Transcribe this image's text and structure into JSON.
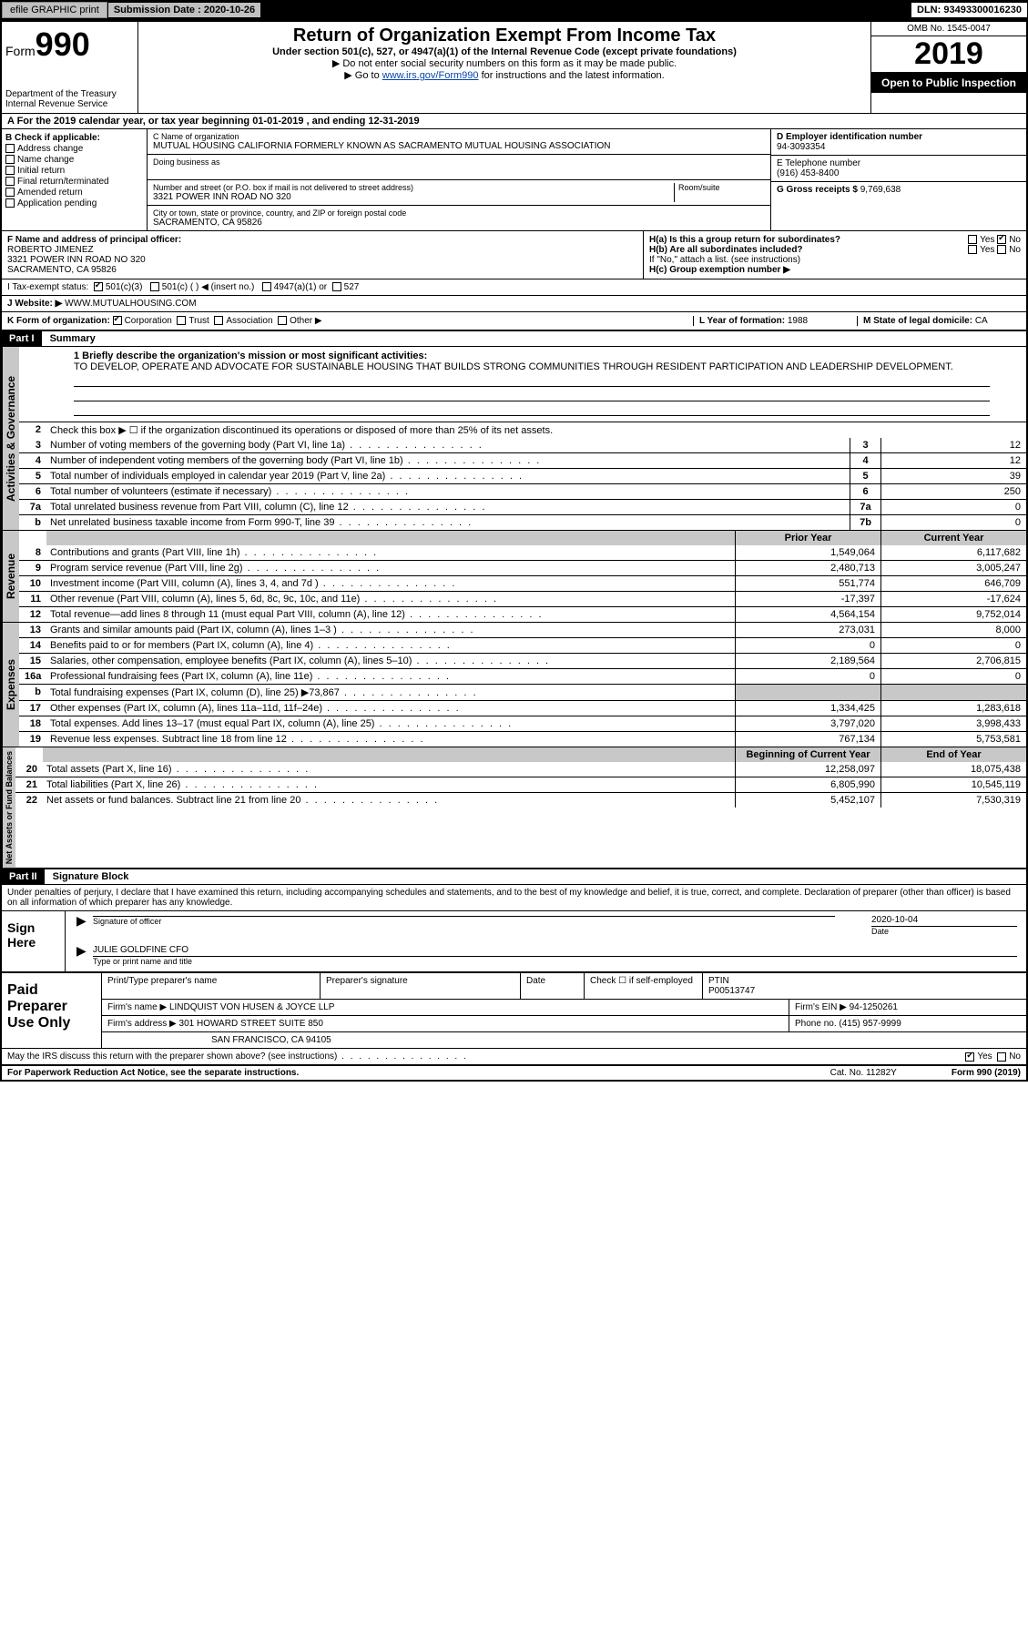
{
  "top": {
    "efile": "efile GRAPHIC print",
    "sub_label": "Submission Date : 2020-10-26",
    "dln": "DLN: 93493300016230"
  },
  "header": {
    "form": "Form",
    "num": "990",
    "dept": "Department of the Treasury\nInternal Revenue Service",
    "title": "Return of Organization Exempt From Income Tax",
    "sub": "Under section 501(c), 527, or 4947(a)(1) of the Internal Revenue Code (except private foundations)",
    "note1": "▶ Do not enter social security numbers on this form as it may be made public.",
    "note2_pre": "▶ Go to ",
    "note2_link": "www.irs.gov/Form990",
    "note2_post": " for instructions and the latest information.",
    "omb": "OMB No. 1545-0047",
    "year": "2019",
    "open": "Open to Public Inspection"
  },
  "rowA": "A For the 2019 calendar year, or tax year beginning 01-01-2019   , and ending 12-31-2019",
  "B": {
    "title": "B Check if applicable:",
    "items": [
      "Address change",
      "Name change",
      "Initial return",
      "Final return/terminated",
      "Amended return",
      "Application pending"
    ]
  },
  "C": {
    "name_label": "C Name of organization",
    "name": "MUTUAL HOUSING CALIFORNIA FORMERLY KNOWN AS SACRAMENTO MUTUAL HOUSING ASSOCIATION",
    "dba_label": "Doing business as",
    "addr_label": "Number and street (or P.O. box if mail is not delivered to street address)",
    "room_label": "Room/suite",
    "addr": "3321 POWER INN ROAD NO 320",
    "city_label": "City or town, state or province, country, and ZIP or foreign postal code",
    "city": "SACRAMENTO, CA  95826"
  },
  "D": {
    "label": "D Employer identification number",
    "val": "94-3093354"
  },
  "E": {
    "label": "E Telephone number",
    "val": "(916) 453-8400"
  },
  "G": {
    "label": "G Gross receipts $",
    "val": "9,769,638"
  },
  "F": {
    "label": "F  Name and address of principal officer:",
    "name": "ROBERTO JIMENEZ",
    "addr": "3321 POWER INN ROAD NO 320\nSACRAMENTO, CA  95826"
  },
  "H": {
    "a": "H(a)  Is this a group return for subordinates?",
    "a_yes": "Yes",
    "a_no": "No",
    "b": "H(b)  Are all subordinates included?",
    "b_yes": "Yes",
    "b_no": "No",
    "b_note": "If \"No,\" attach a list. (see instructions)",
    "c": "H(c)  Group exemption number ▶"
  },
  "I": {
    "label": "I   Tax-exempt status:",
    "opts": [
      "501(c)(3)",
      "501(c) (  ) ◀ (insert no.)",
      "4947(a)(1) or",
      "527"
    ]
  },
  "J": {
    "label": "J   Website: ▶",
    "val": "WWW.MUTUALHOUSING.COM"
  },
  "K": {
    "label": "K Form of organization:",
    "opts": [
      "Corporation",
      "Trust",
      "Association",
      "Other ▶"
    ]
  },
  "L": {
    "label": "L Year of formation:",
    "val": "1988"
  },
  "M": {
    "label": "M State of legal domicile:",
    "val": "CA"
  },
  "part1": {
    "hdr": "Part I",
    "title": "Summary",
    "l1": "1  Briefly describe the organization's mission or most significant activities:",
    "mission": "TO DEVELOP, OPERATE AND ADVOCATE FOR SUSTAINABLE HOUSING THAT BUILDS STRONG COMMUNITIES THROUGH RESIDENT PARTICIPATION AND LEADERSHIP DEVELOPMENT.",
    "l2": "Check this box ▶ ☐  if the organization discontinued its operations or disposed of more than 25% of its net assets.",
    "tab_activities": "Activities & Governance",
    "tab_revenue": "Revenue",
    "tab_expenses": "Expenses",
    "tab_net": "Net Assets or Fund Balances",
    "rows_gov": [
      {
        "n": "3",
        "t": "Number of voting members of the governing body (Part VI, line 1a)",
        "box": "3",
        "v": "12"
      },
      {
        "n": "4",
        "t": "Number of independent voting members of the governing body (Part VI, line 1b)",
        "box": "4",
        "v": "12"
      },
      {
        "n": "5",
        "t": "Total number of individuals employed in calendar year 2019 (Part V, line 2a)",
        "box": "5",
        "v": "39"
      },
      {
        "n": "6",
        "t": "Total number of volunteers (estimate if necessary)",
        "box": "6",
        "v": "250"
      },
      {
        "n": "7a",
        "t": "Total unrelated business revenue from Part VIII, column (C), line 12",
        "box": "7a",
        "v": "0"
      },
      {
        "n": "b",
        "t": "Net unrelated business taxable income from Form 990-T, line 39",
        "box": "7b",
        "v": "0"
      }
    ],
    "col_prior": "Prior Year",
    "col_current": "Current Year",
    "rows_rev": [
      {
        "n": "8",
        "t": "Contributions and grants (Part VIII, line 1h)",
        "p": "1,549,064",
        "c": "6,117,682"
      },
      {
        "n": "9",
        "t": "Program service revenue (Part VIII, line 2g)",
        "p": "2,480,713",
        "c": "3,005,247"
      },
      {
        "n": "10",
        "t": "Investment income (Part VIII, column (A), lines 3, 4, and 7d )",
        "p": "551,774",
        "c": "646,709"
      },
      {
        "n": "11",
        "t": "Other revenue (Part VIII, column (A), lines 5, 6d, 8c, 9c, 10c, and 11e)",
        "p": "-17,397",
        "c": "-17,624"
      },
      {
        "n": "12",
        "t": "Total revenue—add lines 8 through 11 (must equal Part VIII, column (A), line 12)",
        "p": "4,564,154",
        "c": "9,752,014"
      }
    ],
    "rows_exp": [
      {
        "n": "13",
        "t": "Grants and similar amounts paid (Part IX, column (A), lines 1–3 )",
        "p": "273,031",
        "c": "8,000"
      },
      {
        "n": "14",
        "t": "Benefits paid to or for members (Part IX, column (A), line 4)",
        "p": "0",
        "c": "0"
      },
      {
        "n": "15",
        "t": "Salaries, other compensation, employee benefits (Part IX, column (A), lines 5–10)",
        "p": "2,189,564",
        "c": "2,706,815"
      },
      {
        "n": "16a",
        "t": "Professional fundraising fees (Part IX, column (A), line 11e)",
        "p": "0",
        "c": "0"
      },
      {
        "n": "b",
        "t": "Total fundraising expenses (Part IX, column (D), line 25) ▶73,867",
        "p": "",
        "c": "",
        "grey": true
      },
      {
        "n": "17",
        "t": "Other expenses (Part IX, column (A), lines 11a–11d, 11f–24e)",
        "p": "1,334,425",
        "c": "1,283,618"
      },
      {
        "n": "18",
        "t": "Total expenses. Add lines 13–17 (must equal Part IX, column (A), line 25)",
        "p": "3,797,020",
        "c": "3,998,433"
      },
      {
        "n": "19",
        "t": "Revenue less expenses. Subtract line 18 from line 12",
        "p": "767,134",
        "c": "5,753,581"
      }
    ],
    "col_begin": "Beginning of Current Year",
    "col_end": "End of Year",
    "rows_net": [
      {
        "n": "20",
        "t": "Total assets (Part X, line 16)",
        "p": "12,258,097",
        "c": "18,075,438"
      },
      {
        "n": "21",
        "t": "Total liabilities (Part X, line 26)",
        "p": "6,805,990",
        "c": "10,545,119"
      },
      {
        "n": "22",
        "t": "Net assets or fund balances. Subtract line 21 from line 20",
        "p": "5,452,107",
        "c": "7,530,319"
      }
    ]
  },
  "part2": {
    "hdr": "Part II",
    "title": "Signature Block",
    "decl": "Under penalties of perjury, I declare that I have examined this return, including accompanying schedules and statements, and to the best of my knowledge and belief, it is true, correct, and complete. Declaration of preparer (other than officer) is based on all information of which preparer has any knowledge.",
    "sign_here": "Sign Here",
    "sig_officer": "Signature of officer",
    "date_label": "Date",
    "date": "2020-10-04",
    "name": "JULIE GOLDFINE  CFO",
    "name_cap": "Type or print name and title"
  },
  "paid": {
    "label": "Paid Preparer Use Only",
    "r1": {
      "c1": "Print/Type preparer's name",
      "c2": "Preparer's signature",
      "c3": "Date",
      "c4_pre": "Check ☐ if self-employed",
      "c5": "PTIN",
      "c5v": "P00513747"
    },
    "r2": {
      "c1": "Firm's name    ▶",
      "c1v": "LINDQUIST VON HUSEN & JOYCE LLP",
      "c2": "Firm's EIN ▶",
      "c2v": "94-1250261"
    },
    "r3": {
      "c1": "Firm's address ▶",
      "c1v": "301 HOWARD STREET SUITE 850",
      "c2": "Phone no.",
      "c2v": "(415) 957-9999"
    },
    "r3b": "SAN FRANCISCO, CA  94105"
  },
  "discuss": {
    "t": "May the IRS discuss this return with the preparer shown above? (see instructions)",
    "yes": "Yes",
    "no": "No"
  },
  "footer": {
    "l": "For Paperwork Reduction Act Notice, see the separate instructions.",
    "m": "Cat. No. 11282Y",
    "r": "Form 990 (2019)"
  },
  "colors": {
    "black": "#000000",
    "grey": "#c8c8c8",
    "link": "#0645ad"
  }
}
